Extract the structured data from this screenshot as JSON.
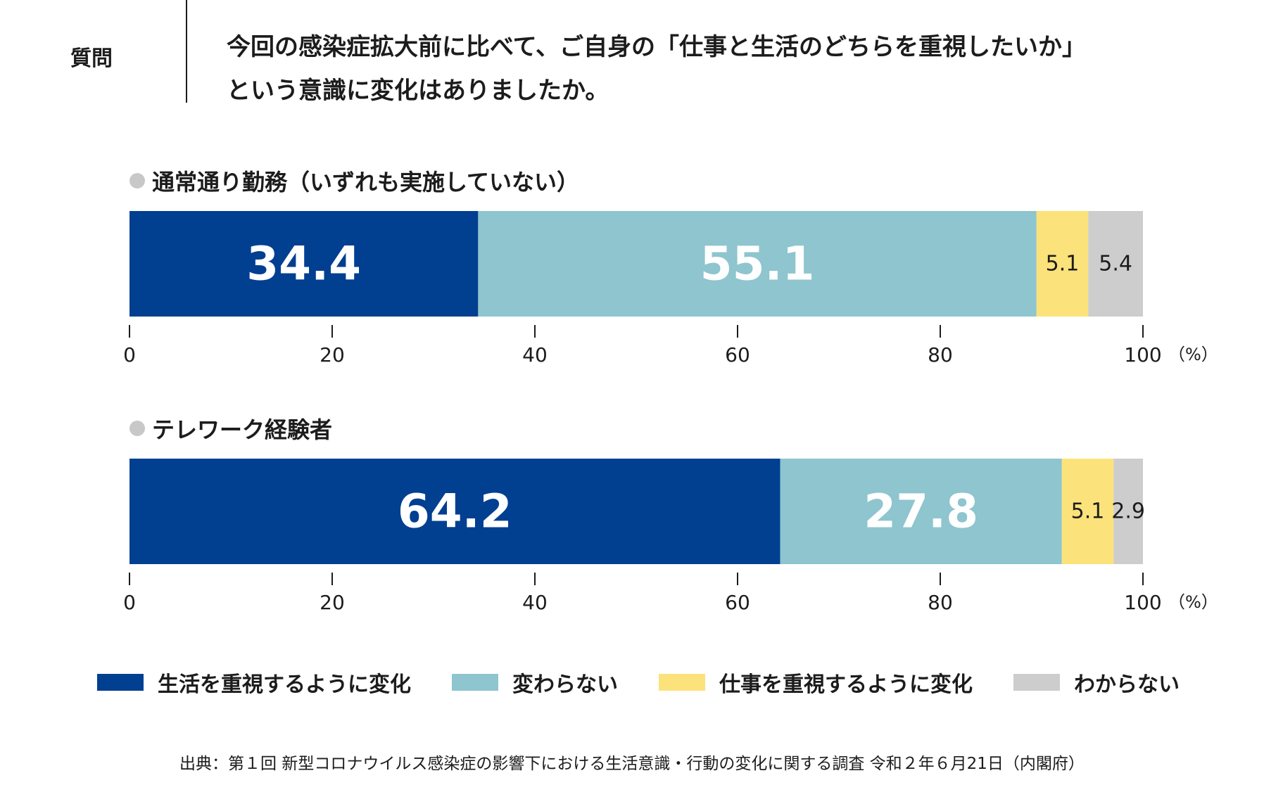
{
  "question": {
    "label": "質問",
    "line1": "今回の感染症拡大前に比べて、ご自身の「仕事と生活のどちらを重視したいか」",
    "line2": "という意識に変化はありましたか。"
  },
  "colors": {
    "life": "#013f91",
    "unchanged": "#8ec5ce",
    "work": "#fce27a",
    "unknown": "#cdcdcd"
  },
  "legend": [
    {
      "label": "生活を重視するように変化",
      "color": "#013f91"
    },
    {
      "label": "変わらない",
      "color": "#8ec5ce"
    },
    {
      "label": "仕事を重視するように変化",
      "color": "#fce27a"
    },
    {
      "label": "わからない",
      "color": "#cdcdcd"
    }
  ],
  "chart_data": [
    {
      "type": "bar",
      "orientation": "horizontal-stacked",
      "title": "通常通り勤務（いずれも実施していない）",
      "series": [
        {
          "name": "生活を重視するように変化",
          "value": 34.4,
          "label": "34.4"
        },
        {
          "name": "変わらない",
          "value": 55.1,
          "label": "55.1"
        },
        {
          "name": "仕事を重視するように変化",
          "value": 5.1,
          "label": "5.1"
        },
        {
          "name": "わからない",
          "value": 5.4,
          "label": "5.4"
        }
      ],
      "xlim": [
        0,
        100
      ],
      "ticks": [
        "0",
        "20",
        "40",
        "60",
        "80",
        "100"
      ],
      "unit": "（%）"
    },
    {
      "type": "bar",
      "orientation": "horizontal-stacked",
      "title": "テレワーク経験者",
      "series": [
        {
          "name": "生活を重視するように変化",
          "value": 64.2,
          "label": "64.2"
        },
        {
          "name": "変わらない",
          "value": 27.8,
          "label": "27.8"
        },
        {
          "name": "仕事を重視するように変化",
          "value": 5.1,
          "label": "5.1"
        },
        {
          "name": "わからない",
          "value": 2.9,
          "label": "2.9"
        }
      ],
      "xlim": [
        0,
        100
      ],
      "ticks": [
        "0",
        "20",
        "40",
        "60",
        "80",
        "100"
      ],
      "unit": "（%）"
    }
  ],
  "source": "出典：第１回 新型コロナウイルス感染症の影響下における生活意識・行動の変化に関する調査 令和２年６月21日（内閣府）"
}
